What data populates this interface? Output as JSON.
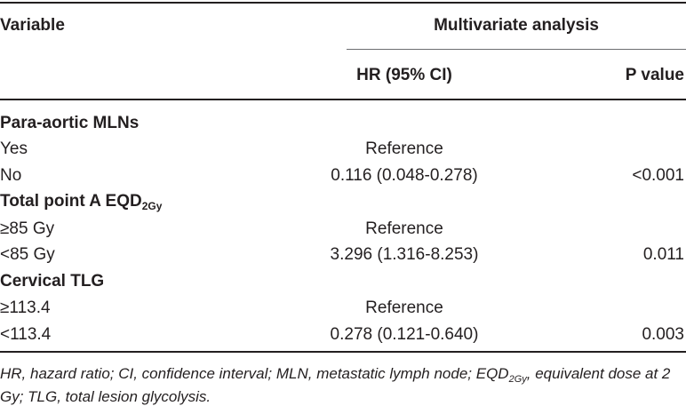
{
  "header": {
    "variable": "Variable",
    "group": "Multivariate analysis",
    "hr": "HR (95% CI)",
    "p": "P value"
  },
  "sections": [
    {
      "title": "Para-aortic MLNs",
      "rows": [
        {
          "label": "Yes",
          "hr": "Reference",
          "p": ""
        },
        {
          "label": "No",
          "hr": "0.116 (0.048-0.278)",
          "p": "<0.001"
        }
      ]
    },
    {
      "title_main": "Total point A EQD",
      "title_sub": "2Gy",
      "rows": [
        {
          "label": "≥85 Gy",
          "hr": "Reference",
          "p": ""
        },
        {
          "label": "<85 Gy",
          "hr": "3.296 (1.316-8.253)",
          "p": "0.011"
        }
      ]
    },
    {
      "title": "Cervical TLG",
      "rows": [
        {
          "label": "≥113.4",
          "hr": "Reference",
          "p": ""
        },
        {
          "label": "<113.4",
          "hr": "0.278 (0.121-0.640)",
          "p": "0.003"
        }
      ]
    }
  ],
  "footnote": {
    "part1": "HR, hazard ratio; CI, confidence interval; MLN, metastatic lymph node; EQD",
    "sub": "2Gy",
    "part2": ", equivalent dose at 2 Gy; TLG, total lesion glycolysis."
  }
}
